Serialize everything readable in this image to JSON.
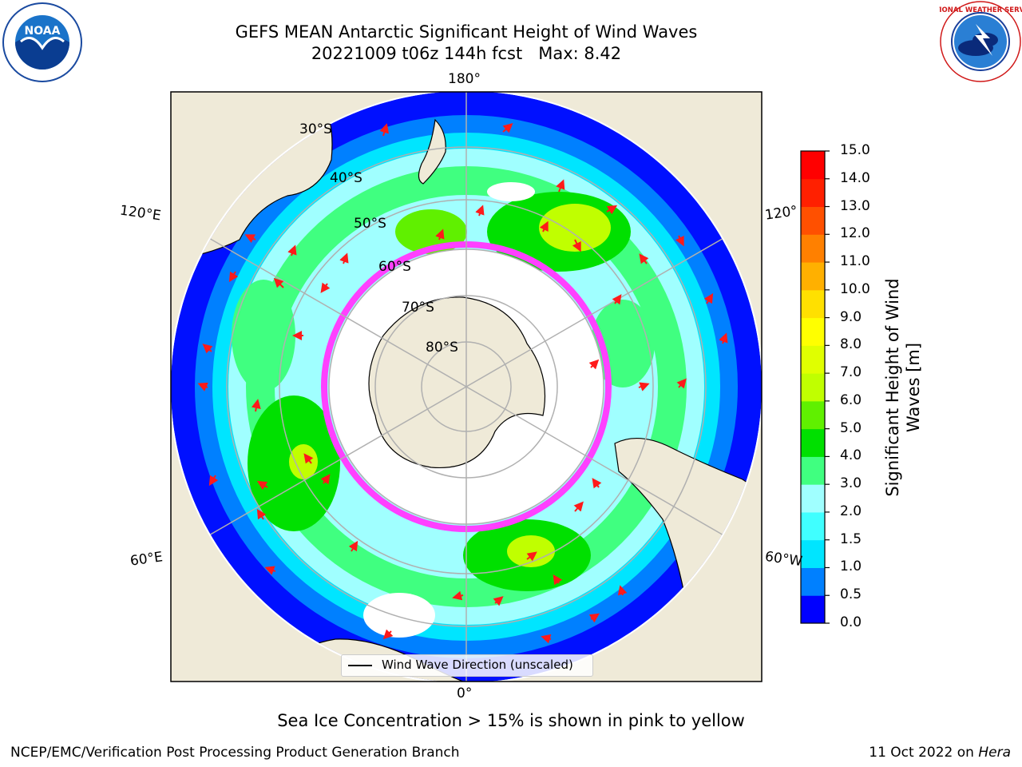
{
  "title": {
    "line1": "GEFS MEAN Antarctic Significant Height of Wind Waves",
    "line2": "20221009 t06z 144h fcst   Max: 8.42"
  },
  "logos": {
    "left": "noaa-logo",
    "left_text": "NOAA",
    "right": "national-weather-service-logo",
    "right_text": "NATIONAL WEATHER SERVICE"
  },
  "map": {
    "projection": "south-polar-stereographic",
    "longitude_labels": [
      "180°",
      "120°E",
      "120°",
      "60°E",
      "60°W",
      "0°"
    ],
    "latitude_labels": [
      "30°S",
      "40°S",
      "50°S",
      "60°S",
      "70°S",
      "80°S"
    ]
  },
  "legend": {
    "label": "Wind Wave Direction (unscaled)"
  },
  "colorbar": {
    "label": "Significant Height of Wind Waves [m]",
    "ticks": [
      "0.0",
      "0.5",
      "1.0",
      "1.5",
      "2.0",
      "3.0",
      "4.0",
      "5.0",
      "6.0",
      "7.0",
      "8.0",
      "9.0",
      "10.0",
      "11.0",
      "12.0",
      "13.0",
      "14.0",
      "15.0"
    ],
    "colors": [
      "#0000ff",
      "#0080ff",
      "#00e5ff",
      "#40ffff",
      "#a0ffff",
      "#40ff80",
      "#00e000",
      "#60f000",
      "#c0ff00",
      "#e0ff00",
      "#ffff00",
      "#ffe000",
      "#ffb000",
      "#ff8000",
      "#ff5000",
      "#ff2000",
      "#ff0000"
    ]
  },
  "caption": "Sea Ice Concentration > 15% is shown in pink to yellow",
  "footer": {
    "left": "NCEP/EMC/Verification Post Processing Product Generation Branch",
    "right_prefix": "11 Oct 2022 on ",
    "right_machine": "Hera"
  }
}
